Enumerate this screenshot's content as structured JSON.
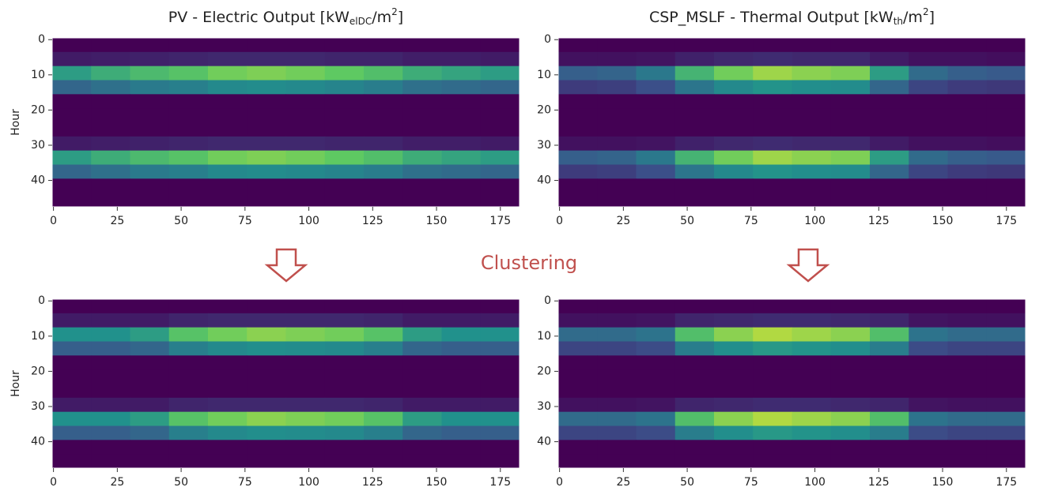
{
  "annotation": "Clustering",
  "chart_data": [
    {
      "type": "heatmap",
      "title": [
        "PV - Electric Output [kW",
        "elDC",
        "/m",
        "2",
        "]"
      ],
      "ylabel": "Hour",
      "colormap": "viridis",
      "zlim": [
        0,
        1
      ],
      "xlim": [
        -0.5,
        182.5
      ],
      "ylim": [
        -0.5,
        47.5
      ],
      "invert_y": true,
      "xticks": [
        0,
        25,
        50,
        75,
        100,
        125,
        150,
        175
      ],
      "yticks": [
        0,
        10,
        20,
        30,
        40
      ],
      "z": [
        [
          0,
          0,
          0,
          0,
          0,
          0,
          0,
          0,
          0,
          0,
          0,
          0
        ],
        [
          0.08,
          0.09,
          0.1,
          0.11,
          0.12,
          0.12,
          0.12,
          0.11,
          0.11,
          0.09,
          0.09,
          0.08
        ],
        [
          0.55,
          0.62,
          0.68,
          0.72,
          0.78,
          0.8,
          0.78,
          0.75,
          0.7,
          0.62,
          0.58,
          0.55
        ],
        [
          0.33,
          0.37,
          0.41,
          0.43,
          0.47,
          0.48,
          0.47,
          0.45,
          0.42,
          0.37,
          0.35,
          0.33
        ],
        [
          0,
          0,
          0,
          0,
          0,
          0,
          0,
          0,
          0,
          0,
          0,
          0
        ],
        [
          0,
          0,
          0,
          0,
          0,
          0,
          0,
          0,
          0,
          0,
          0,
          0
        ],
        [
          0,
          0,
          0,
          0,
          0,
          0,
          0,
          0,
          0,
          0,
          0,
          0
        ],
        [
          0.08,
          0.09,
          0.1,
          0.11,
          0.12,
          0.12,
          0.12,
          0.11,
          0.11,
          0.09,
          0.09,
          0.08
        ],
        [
          0.55,
          0.62,
          0.68,
          0.72,
          0.78,
          0.8,
          0.78,
          0.75,
          0.7,
          0.62,
          0.58,
          0.55
        ],
        [
          0.33,
          0.37,
          0.41,
          0.43,
          0.47,
          0.48,
          0.47,
          0.45,
          0.42,
          0.37,
          0.35,
          0.33
        ],
        [
          0,
          0,
          0,
          0,
          0,
          0,
          0,
          0,
          0,
          0,
          0,
          0
        ],
        [
          0,
          0,
          0,
          0,
          0,
          0,
          0,
          0,
          0,
          0,
          0,
          0
        ]
      ]
    },
    {
      "type": "heatmap",
      "title": [
        "CSP_MSLF - Thermal Output [kW",
        "th",
        "/m",
        "2",
        "]"
      ],
      "colormap": "viridis",
      "zlim": [
        0,
        1
      ],
      "xlim": [
        -0.5,
        182.5
      ],
      "ylim": [
        -0.5,
        47.5
      ],
      "invert_y": true,
      "xticks": [
        0,
        25,
        50,
        75,
        100,
        125,
        150,
        175
      ],
      "yticks": [
        0,
        10,
        20,
        30,
        40
      ],
      "z": [
        [
          0,
          0,
          0,
          0,
          0,
          0,
          0,
          0,
          0,
          0,
          0,
          0
        ],
        [
          0.05,
          0.05,
          0.06,
          0.1,
          0.12,
          0.13,
          0.12,
          0.12,
          0.08,
          0.05,
          0.05,
          0.04
        ],
        [
          0.3,
          0.32,
          0.4,
          0.65,
          0.78,
          0.85,
          0.82,
          0.8,
          0.55,
          0.35,
          0.3,
          0.28
        ],
        [
          0.18,
          0.19,
          0.24,
          0.39,
          0.47,
          0.51,
          0.49,
          0.48,
          0.33,
          0.21,
          0.18,
          0.17
        ],
        [
          0,
          0,
          0,
          0,
          0,
          0,
          0,
          0,
          0,
          0,
          0,
          0
        ],
        [
          0,
          0,
          0,
          0,
          0,
          0,
          0,
          0,
          0,
          0,
          0,
          0
        ],
        [
          0,
          0,
          0,
          0,
          0,
          0,
          0,
          0,
          0,
          0,
          0,
          0
        ],
        [
          0.05,
          0.05,
          0.06,
          0.1,
          0.12,
          0.13,
          0.12,
          0.12,
          0.08,
          0.05,
          0.05,
          0.04
        ],
        [
          0.3,
          0.32,
          0.4,
          0.65,
          0.78,
          0.85,
          0.82,
          0.8,
          0.55,
          0.35,
          0.3,
          0.28
        ],
        [
          0.18,
          0.19,
          0.24,
          0.39,
          0.47,
          0.51,
          0.49,
          0.48,
          0.33,
          0.21,
          0.18,
          0.17
        ],
        [
          0,
          0,
          0,
          0,
          0,
          0,
          0,
          0,
          0,
          0,
          0,
          0
        ],
        [
          0,
          0,
          0,
          0,
          0,
          0,
          0,
          0,
          0,
          0,
          0,
          0
        ]
      ]
    },
    {
      "type": "heatmap",
      "ylabel": "Hour",
      "colormap": "viridis",
      "zlim": [
        0,
        1
      ],
      "xlim": [
        -0.5,
        182.5
      ],
      "ylim": [
        -0.5,
        47.5
      ],
      "invert_y": true,
      "xticks": [
        0,
        25,
        50,
        75,
        100,
        125,
        150,
        175
      ],
      "yticks": [
        0,
        10,
        20,
        30,
        40
      ],
      "z": [
        [
          0,
          0,
          0,
          0,
          0,
          0,
          0,
          0,
          0,
          0,
          0,
          0
        ],
        [
          0.08,
          0.08,
          0.08,
          0.11,
          0.12,
          0.12,
          0.12,
          0.12,
          0.11,
          0.08,
          0.08,
          0.08
        ],
        [
          0.5,
          0.5,
          0.55,
          0.72,
          0.78,
          0.82,
          0.8,
          0.78,
          0.72,
          0.55,
          0.5,
          0.5
        ],
        [
          0.3,
          0.3,
          0.33,
          0.43,
          0.47,
          0.49,
          0.48,
          0.47,
          0.43,
          0.33,
          0.3,
          0.3
        ],
        [
          0,
          0,
          0,
          0,
          0,
          0,
          0,
          0,
          0,
          0,
          0,
          0
        ],
        [
          0,
          0,
          0,
          0,
          0,
          0,
          0,
          0,
          0,
          0,
          0,
          0
        ],
        [
          0,
          0,
          0,
          0,
          0,
          0,
          0,
          0,
          0,
          0,
          0,
          0
        ],
        [
          0.08,
          0.08,
          0.08,
          0.11,
          0.12,
          0.12,
          0.12,
          0.12,
          0.11,
          0.08,
          0.08,
          0.08
        ],
        [
          0.5,
          0.5,
          0.55,
          0.72,
          0.78,
          0.82,
          0.8,
          0.78,
          0.72,
          0.55,
          0.5,
          0.5
        ],
        [
          0.3,
          0.3,
          0.33,
          0.43,
          0.47,
          0.49,
          0.48,
          0.47,
          0.43,
          0.33,
          0.3,
          0.3
        ],
        [
          0,
          0,
          0,
          0,
          0,
          0,
          0,
          0,
          0,
          0,
          0,
          0
        ],
        [
          0,
          0,
          0,
          0,
          0,
          0,
          0,
          0,
          0,
          0,
          0,
          0
        ]
      ]
    },
    {
      "type": "heatmap",
      "colormap": "viridis",
      "zlim": [
        0,
        1
      ],
      "xlim": [
        -0.5,
        182.5
      ],
      "ylim": [
        -0.5,
        47.5
      ],
      "invert_y": true,
      "xticks": [
        0,
        25,
        50,
        75,
        100,
        125,
        150,
        175
      ],
      "yticks": [
        0,
        10,
        20,
        30,
        40
      ],
      "z": [
        [
          0,
          0,
          0,
          0,
          0,
          0,
          0,
          0,
          0,
          0,
          0,
          0
        ],
        [
          0.05,
          0.05,
          0.06,
          0.11,
          0.12,
          0.13,
          0.13,
          0.12,
          0.11,
          0.06,
          0.05,
          0.05
        ],
        [
          0.35,
          0.35,
          0.38,
          0.7,
          0.82,
          0.88,
          0.85,
          0.82,
          0.7,
          0.38,
          0.35,
          0.35
        ],
        [
          0.21,
          0.21,
          0.23,
          0.42,
          0.49,
          0.53,
          0.51,
          0.49,
          0.42,
          0.23,
          0.21,
          0.21
        ],
        [
          0,
          0,
          0,
          0,
          0,
          0,
          0,
          0,
          0,
          0,
          0,
          0
        ],
        [
          0,
          0,
          0,
          0,
          0,
          0,
          0,
          0,
          0,
          0,
          0,
          0
        ],
        [
          0,
          0,
          0,
          0,
          0,
          0,
          0,
          0,
          0,
          0,
          0,
          0
        ],
        [
          0.05,
          0.05,
          0.06,
          0.11,
          0.12,
          0.13,
          0.13,
          0.12,
          0.11,
          0.06,
          0.05,
          0.05
        ],
        [
          0.35,
          0.35,
          0.38,
          0.7,
          0.82,
          0.88,
          0.85,
          0.82,
          0.7,
          0.38,
          0.35,
          0.35
        ],
        [
          0.21,
          0.21,
          0.23,
          0.42,
          0.49,
          0.53,
          0.51,
          0.49,
          0.42,
          0.23,
          0.21,
          0.21
        ],
        [
          0,
          0,
          0,
          0,
          0,
          0,
          0,
          0,
          0,
          0,
          0,
          0
        ],
        [
          0,
          0,
          0,
          0,
          0,
          0,
          0,
          0,
          0,
          0,
          0,
          0
        ]
      ]
    }
  ]
}
